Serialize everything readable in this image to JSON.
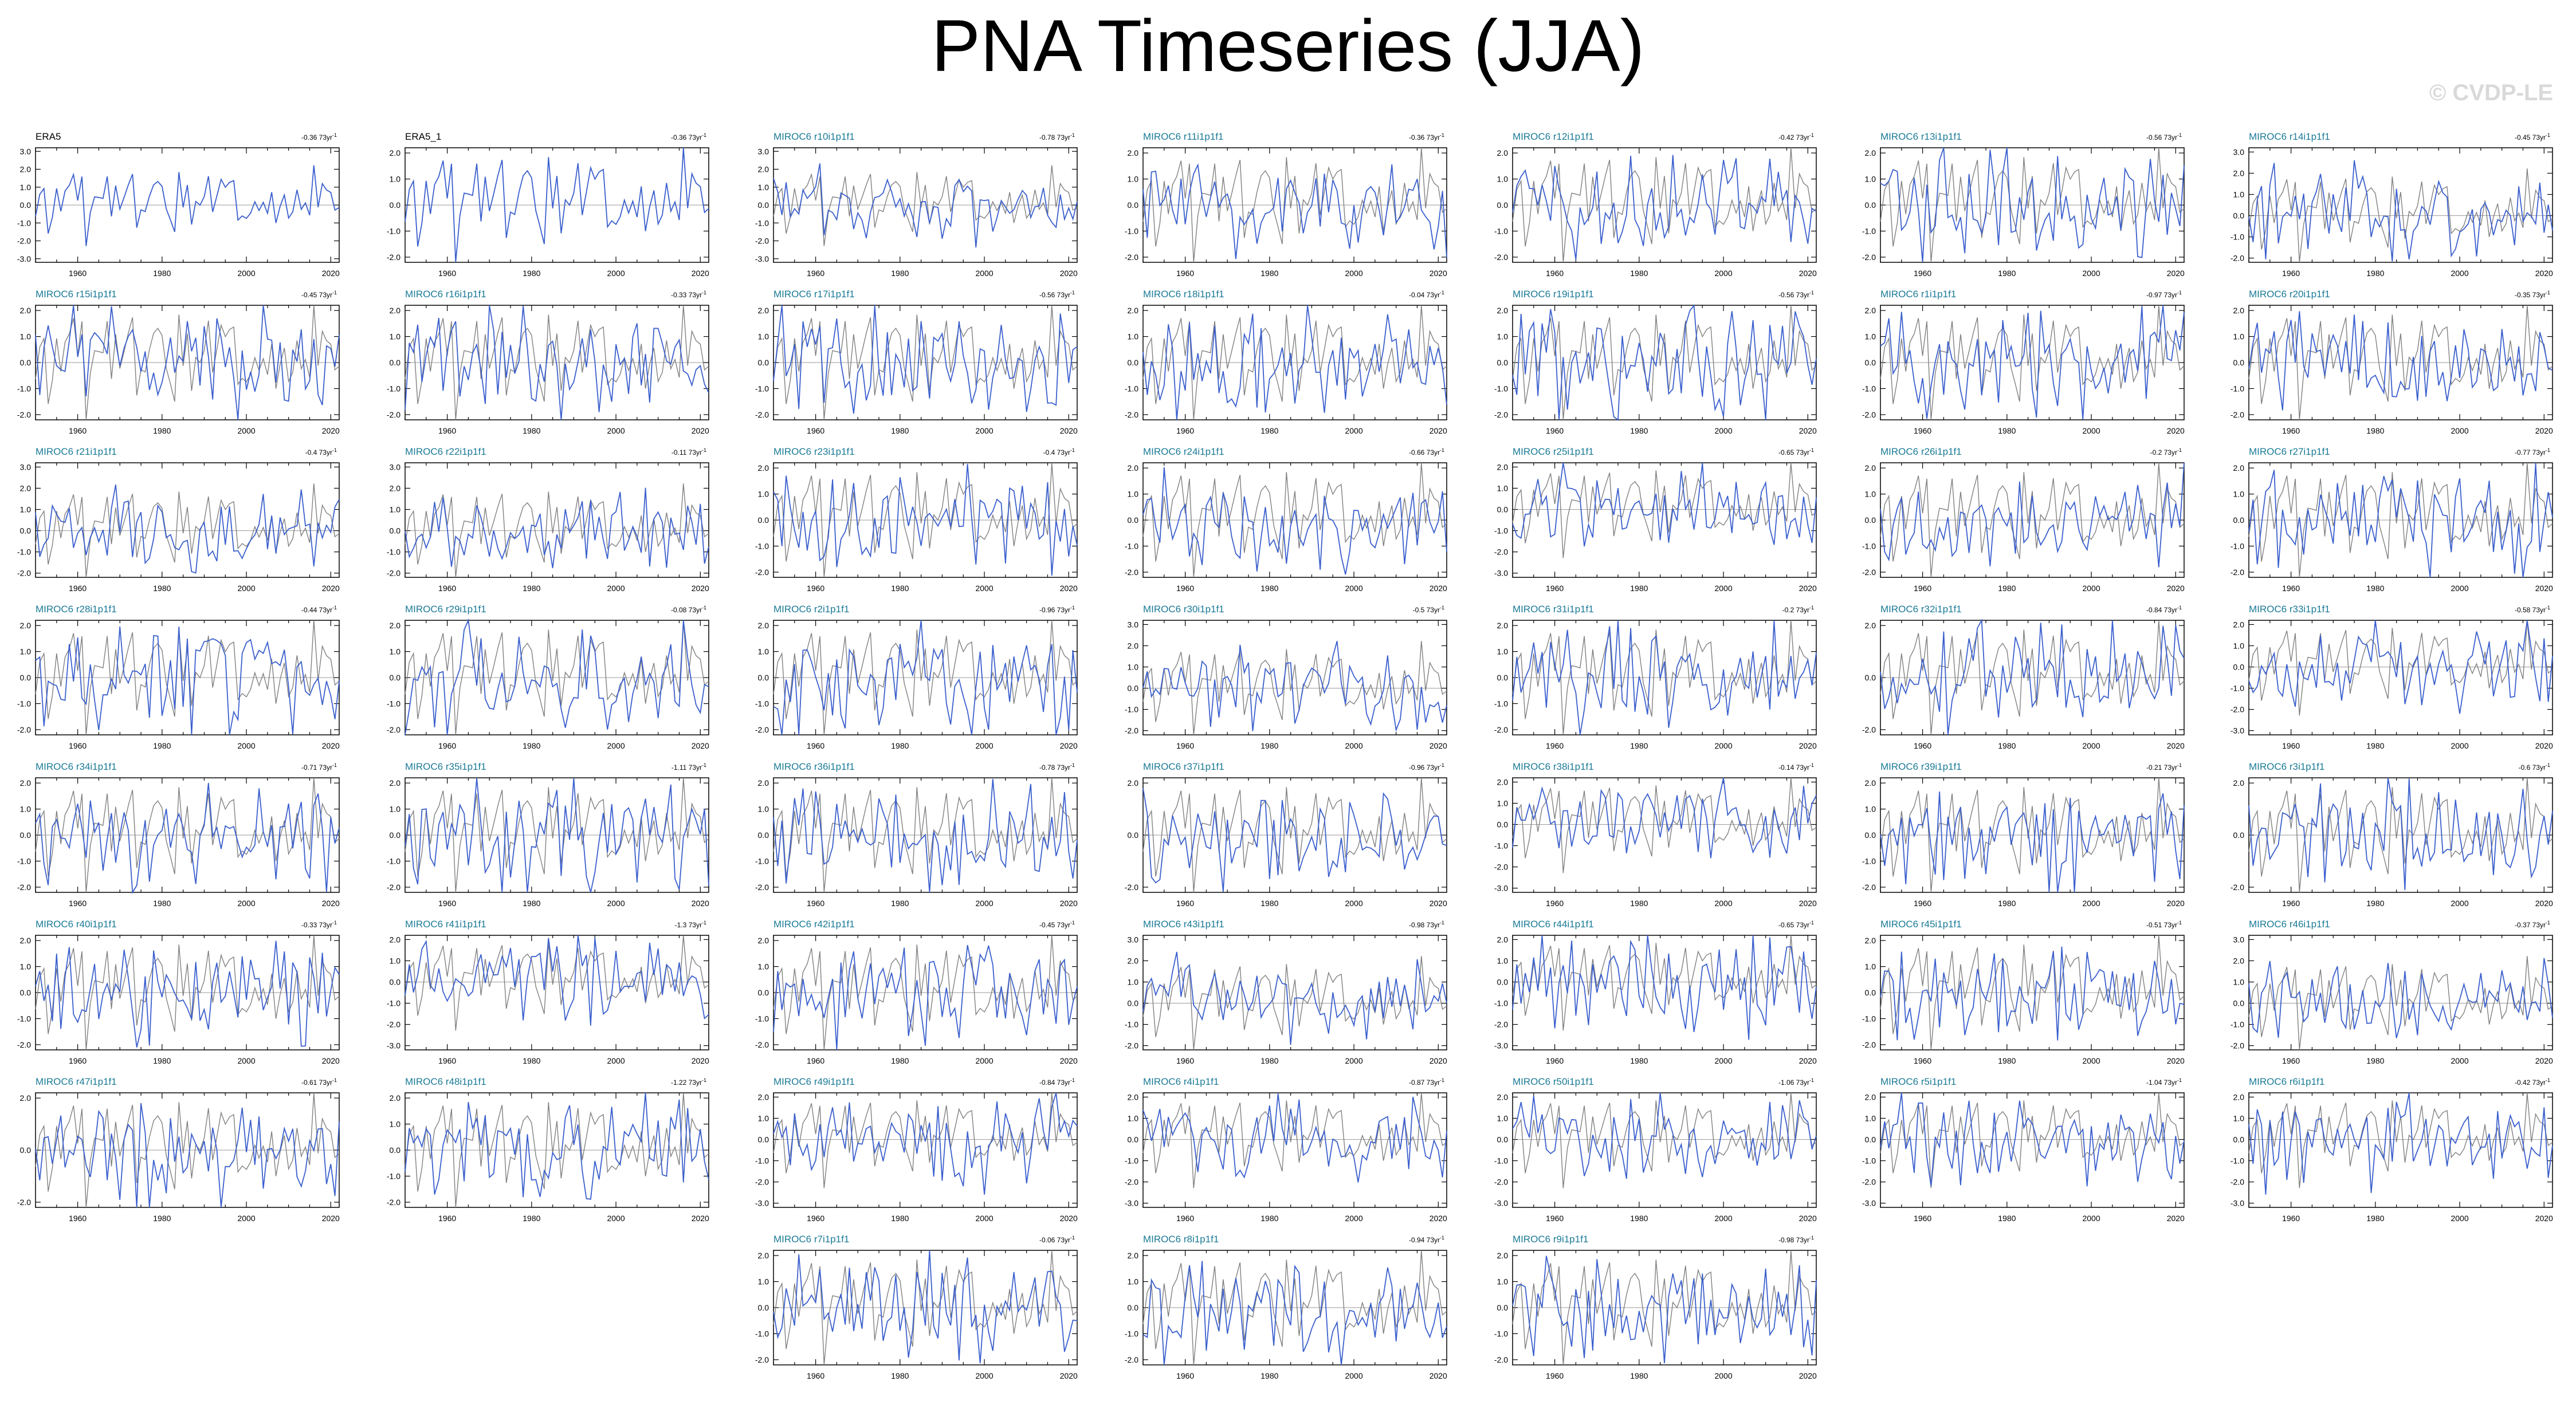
{
  "title": "PNA Timeseries (JJA)",
  "watermark": "© CVDP-LE",
  "colors": {
    "observed": "#808080",
    "member": "#3a5fcd",
    "title_obs": "#000000",
    "title_member": "#1a7a96",
    "axis": "#000000"
  },
  "chart_data": {
    "type": "line",
    "x_range": [
      1950,
      2022
    ],
    "x_ticks": [
      1960,
      1980,
      2000,
      2020
    ],
    "trend_unit": "73yr",
    "panels": [
      {
        "name": "ERA5",
        "trend": "-0.36",
        "yticks": [
          3,
          2,
          1,
          0,
          -1,
          -2,
          -3
        ],
        "obs_overlay": false
      },
      {
        "name": "ERA5_1",
        "trend": "-0.36",
        "yticks": [
          2,
          1,
          0,
          -1,
          -2
        ],
        "obs_overlay": false
      },
      {
        "name": "MIROC6 r10i1p1f1",
        "trend": "-0.78",
        "yticks": [
          3,
          2,
          1,
          0,
          -1,
          -2,
          -3
        ],
        "obs_overlay": true
      },
      {
        "name": "MIROC6 r11i1p1f1",
        "trend": "-0.36",
        "yticks": [
          2,
          1,
          0,
          -1,
          -2
        ],
        "obs_overlay": true
      },
      {
        "name": "MIROC6 r12i1p1f1",
        "trend": "-0.42",
        "yticks": [
          2,
          1,
          0,
          -1,
          -2
        ],
        "obs_overlay": true
      },
      {
        "name": "MIROC6 r13i1p1f1",
        "trend": "-0.56",
        "yticks": [
          2,
          1,
          0,
          -1,
          -2
        ],
        "obs_overlay": true
      },
      {
        "name": "MIROC6 r14i1p1f1",
        "trend": "-0.45",
        "yticks": [
          3,
          2,
          1,
          0,
          -1,
          -2
        ],
        "obs_overlay": true
      },
      {
        "name": "MIROC6 r15i1p1f1",
        "trend": "-0.45",
        "yticks": [
          2,
          1,
          0,
          -1,
          -2
        ],
        "obs_overlay": true
      },
      {
        "name": "MIROC6 r16i1p1f1",
        "trend": "-0.33",
        "yticks": [
          2,
          1,
          0,
          -1,
          -2
        ],
        "obs_overlay": true
      },
      {
        "name": "MIROC6 r17i1p1f1",
        "trend": "-0.56",
        "yticks": [
          2,
          1,
          0,
          -1,
          -2
        ],
        "obs_overlay": true
      },
      {
        "name": "MIROC6 r18i1p1f1",
        "trend": "-0.04",
        "yticks": [
          2,
          1,
          0,
          -1,
          -2
        ],
        "obs_overlay": true
      },
      {
        "name": "MIROC6 r19i1p1f1",
        "trend": "-0.56",
        "yticks": [
          2,
          1,
          0,
          -1,
          -2
        ],
        "obs_overlay": true
      },
      {
        "name": "MIROC6 r1i1p1f1",
        "trend": "-0.97",
        "yticks": [
          2,
          1,
          0,
          -1,
          -2
        ],
        "obs_overlay": true
      },
      {
        "name": "MIROC6 r20i1p1f1",
        "trend": "-0.35",
        "yticks": [
          2,
          1,
          0,
          -1,
          -2
        ],
        "obs_overlay": true
      },
      {
        "name": "MIROC6 r21i1p1f1",
        "trend": "-0.4",
        "yticks": [
          3,
          2,
          1,
          0,
          -1,
          -2
        ],
        "obs_overlay": true
      },
      {
        "name": "MIROC6 r22i1p1f1",
        "trend": "-0.11",
        "yticks": [
          3,
          2,
          1,
          0,
          -1,
          -2
        ],
        "obs_overlay": true
      },
      {
        "name": "MIROC6 r23i1p1f1",
        "trend": "-0.4",
        "yticks": [
          2,
          1,
          0,
          -1,
          -2
        ],
        "obs_overlay": true
      },
      {
        "name": "MIROC6 r24i1p1f1",
        "trend": "-0.66",
        "yticks": [
          2,
          1,
          0,
          -1,
          -2
        ],
        "obs_overlay": true
      },
      {
        "name": "MIROC6 r25i1p1f1",
        "trend": "-0.65",
        "yticks": [
          2,
          1,
          0,
          -1,
          -2,
          -3
        ],
        "obs_overlay": true
      },
      {
        "name": "MIROC6 r26i1p1f1",
        "trend": "-0.2",
        "yticks": [
          2,
          1,
          0,
          -1,
          -2
        ],
        "obs_overlay": true
      },
      {
        "name": "MIROC6 r27i1p1f1",
        "trend": "-0.77",
        "yticks": [
          2,
          1,
          0,
          -1,
          -2
        ],
        "obs_overlay": true
      },
      {
        "name": "MIROC6 r28i1p1f1",
        "trend": "-0.44",
        "yticks": [
          2,
          1,
          0,
          -1,
          -2
        ],
        "obs_overlay": true
      },
      {
        "name": "MIROC6 r29i1p1f1",
        "trend": "-0.08",
        "yticks": [
          2,
          1,
          0,
          -1,
          -2
        ],
        "obs_overlay": true
      },
      {
        "name": "MIROC6 r2i1p1f1",
        "trend": "-0.96",
        "yticks": [
          2,
          1,
          0,
          -1,
          -2
        ],
        "obs_overlay": true
      },
      {
        "name": "MIROC6 r30i1p1f1",
        "trend": "-0.5",
        "yticks": [
          3,
          2,
          1,
          0,
          -1,
          -2
        ],
        "obs_overlay": true
      },
      {
        "name": "MIROC6 r31i1p1f1",
        "trend": "-0.2",
        "yticks": [
          2,
          1,
          0,
          -1,
          -2
        ],
        "obs_overlay": true
      },
      {
        "name": "MIROC6 r32i1p1f1",
        "trend": "-0.84",
        "yticks": [
          2,
          0,
          -2
        ],
        "obs_overlay": true
      },
      {
        "name": "MIROC6 r33i1p1f1",
        "trend": "-0.58",
        "yticks": [
          2,
          1,
          0,
          -1,
          -2,
          -3
        ],
        "obs_overlay": true
      },
      {
        "name": "MIROC6 r34i1p1f1",
        "trend": "-0.71",
        "yticks": [
          2,
          1,
          0,
          -1,
          -2
        ],
        "obs_overlay": true
      },
      {
        "name": "MIROC6 r35i1p1f1",
        "trend": "-1.11",
        "yticks": [
          2,
          1,
          0,
          -1,
          -2
        ],
        "obs_overlay": true
      },
      {
        "name": "MIROC6 r36i1p1f1",
        "trend": "-0.78",
        "yticks": [
          2,
          1,
          0,
          -1,
          -2
        ],
        "obs_overlay": true
      },
      {
        "name": "MIROC6 r37i1p1f1",
        "trend": "-0.96",
        "yticks": [
          2,
          0,
          -2
        ],
        "obs_overlay": true
      },
      {
        "name": "MIROC6 r38i1p1f1",
        "trend": "-0.14",
        "yticks": [
          2,
          1,
          0,
          -1,
          -2,
          -3
        ],
        "obs_overlay": true
      },
      {
        "name": "MIROC6 r39i1p1f1",
        "trend": "-0.21",
        "yticks": [
          2,
          1,
          0,
          -1,
          -2
        ],
        "obs_overlay": true
      },
      {
        "name": "MIROC6 r3i1p1f1",
        "trend": "-0.6",
        "yticks": [
          2,
          0,
          -2
        ],
        "obs_overlay": true
      },
      {
        "name": "MIROC6 r40i1p1f1",
        "trend": "-0.33",
        "yticks": [
          2,
          1,
          0,
          -1,
          -2
        ],
        "obs_overlay": true
      },
      {
        "name": "MIROC6 r41i1p1f1",
        "trend": "-1.3",
        "yticks": [
          2,
          1,
          0,
          -1,
          -2,
          -3
        ],
        "obs_overlay": true
      },
      {
        "name": "MIROC6 r42i1p1f1",
        "trend": "-0.45",
        "yticks": [
          2,
          1,
          0,
          -1,
          -2
        ],
        "obs_overlay": true
      },
      {
        "name": "MIROC6 r43i1p1f1",
        "trend": "-0.98",
        "yticks": [
          3,
          2,
          1,
          0,
          -1,
          -2
        ],
        "obs_overlay": true
      },
      {
        "name": "MIROC6 r44i1p1f1",
        "trend": "-0.65",
        "yticks": [
          2,
          1,
          0,
          -1,
          -2,
          -3
        ],
        "obs_overlay": true
      },
      {
        "name": "MIROC6 r45i1p1f1",
        "trend": "-0.51",
        "yticks": [
          2,
          1,
          0,
          -1,
          -2
        ],
        "obs_overlay": true
      },
      {
        "name": "MIROC6 r46i1p1f1",
        "trend": "-0.37",
        "yticks": [
          3,
          2,
          1,
          0,
          -1,
          -2
        ],
        "obs_overlay": true
      },
      {
        "name": "MIROC6 r47i1p1f1",
        "trend": "-0.61",
        "yticks": [
          2,
          0,
          -2
        ],
        "obs_overlay": true
      },
      {
        "name": "MIROC6 r48i1p1f1",
        "trend": "-1.22",
        "yticks": [
          2,
          1,
          0,
          -1,
          -2
        ],
        "obs_overlay": true
      },
      {
        "name": "MIROC6 r49i1p1f1",
        "trend": "-0.84",
        "yticks": [
          2,
          1,
          0,
          -1,
          -2,
          -3
        ],
        "obs_overlay": true
      },
      {
        "name": "MIROC6 r4i1p1f1",
        "trend": "-0.87",
        "yticks": [
          2,
          1,
          0,
          -1,
          -2,
          -3
        ],
        "obs_overlay": true
      },
      {
        "name": "MIROC6 r50i1p1f1",
        "trend": "-1.06",
        "yticks": [
          2,
          1,
          0,
          -1,
          -2,
          -3
        ],
        "obs_overlay": true
      },
      {
        "name": "MIROC6 r5i1p1f1",
        "trend": "-1.04",
        "yticks": [
          2,
          1,
          0,
          -1,
          -2,
          -3
        ],
        "obs_overlay": true
      },
      {
        "name": "MIROC6 r6i1p1f1",
        "trend": "-0.42",
        "yticks": [
          2,
          1,
          0,
          -1,
          -2,
          -3
        ],
        "obs_overlay": true
      },
      {
        "name": "MIROC6 r7i1p1f1",
        "trend": "-0.06",
        "yticks": [
          2,
          1,
          0,
          -1,
          -2
        ],
        "obs_overlay": true
      },
      {
        "name": "MIROC6 r8i1p1f1",
        "trend": "-0.94",
        "yticks": [
          2,
          1,
          0,
          -1,
          -2
        ],
        "obs_overlay": true
      },
      {
        "name": "MIROC6 r9i1p1f1",
        "trend": "-0.98",
        "yticks": [
          2,
          1,
          0,
          -1,
          -2
        ],
        "obs_overlay": true
      }
    ]
  }
}
